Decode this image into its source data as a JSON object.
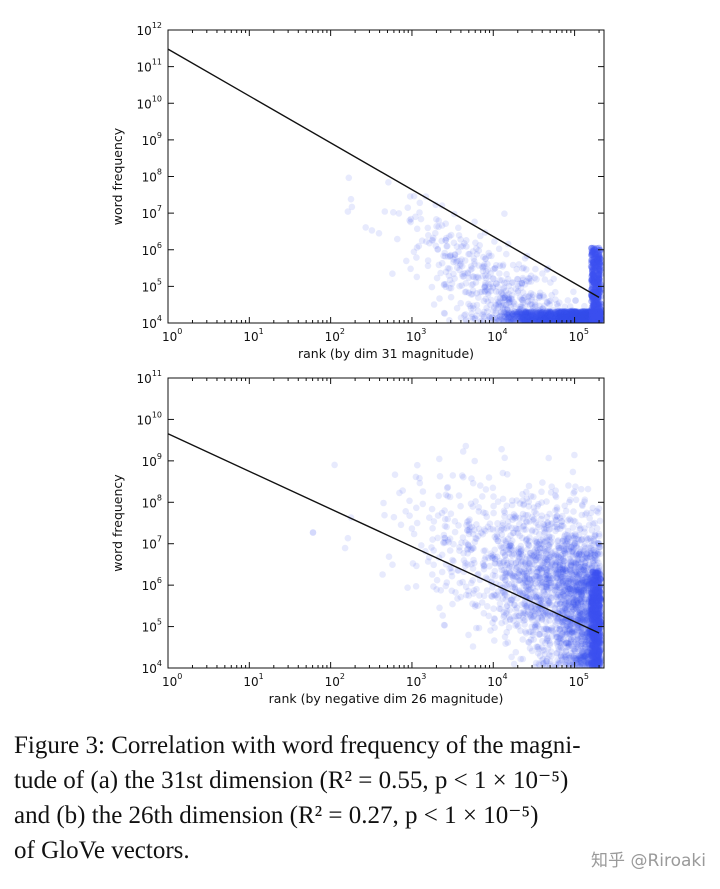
{
  "chart_data": [
    {
      "type": "scatter",
      "xlabel": "rank (by dim 31 magnitude)",
      "ylabel": "word frequency",
      "xscale": "log",
      "yscale": "log",
      "xlim": [
        1,
        230000
      ],
      "ylim": [
        10000,
        1000000000000
      ],
      "xticks": [
        {
          "base": "10",
          "exp": "0",
          "value": 1
        },
        {
          "base": "10",
          "exp": "1",
          "value": 10
        },
        {
          "base": "10",
          "exp": "2",
          "value": 100
        },
        {
          "base": "10",
          "exp": "3",
          "value": 1000
        },
        {
          "base": "10",
          "exp": "4",
          "value": 10000
        },
        {
          "base": "10",
          "exp": "5",
          "value": 100000
        }
      ],
      "yticks": [
        {
          "base": "10",
          "exp": "4",
          "value": 10000
        },
        {
          "base": "10",
          "exp": "5",
          "value": 100000
        },
        {
          "base": "10",
          "exp": "6",
          "value": 1000000
        },
        {
          "base": "10",
          "exp": "7",
          "value": 10000000
        },
        {
          "base": "10",
          "exp": "8",
          "value": 100000000
        },
        {
          "base": "10",
          "exp": "9",
          "value": 1000000000
        },
        {
          "base": "10",
          "exp": "10",
          "value": 10000000000
        },
        {
          "base": "10",
          "exp": "11",
          "value": 100000000000
        },
        {
          "base": "10",
          "exp": "12",
          "value": 1000000000000
        }
      ],
      "fit_line": {
        "x": [
          1,
          200000
        ],
        "y": [
          300000000000,
          50000
        ]
      },
      "point_color": "#3c50f0",
      "line_color": "#111111",
      "grid": false
    },
    {
      "type": "scatter",
      "xlabel": "rank (by negative dim 26 magnitude)",
      "ylabel": "word frequency",
      "xscale": "log",
      "yscale": "log",
      "xlim": [
        1,
        230000
      ],
      "ylim": [
        10000,
        100000000000
      ],
      "xticks": [
        {
          "base": "10",
          "exp": "0",
          "value": 1
        },
        {
          "base": "10",
          "exp": "1",
          "value": 10
        },
        {
          "base": "10",
          "exp": "2",
          "value": 100
        },
        {
          "base": "10",
          "exp": "3",
          "value": 1000
        },
        {
          "base": "10",
          "exp": "4",
          "value": 10000
        },
        {
          "base": "10",
          "exp": "5",
          "value": 100000
        }
      ],
      "yticks": [
        {
          "base": "10",
          "exp": "4",
          "value": 10000
        },
        {
          "base": "10",
          "exp": "5",
          "value": 100000
        },
        {
          "base": "10",
          "exp": "6",
          "value": 1000000
        },
        {
          "base": "10",
          "exp": "7",
          "value": 10000000
        },
        {
          "base": "10",
          "exp": "8",
          "value": 100000000
        },
        {
          "base": "10",
          "exp": "9",
          "value": 1000000000
        },
        {
          "base": "10",
          "exp": "10",
          "value": 10000000000
        },
        {
          "base": "10",
          "exp": "11",
          "value": 100000000000
        }
      ],
      "fit_line": {
        "x": [
          1,
          200000
        ],
        "y": [
          4500000000,
          70000
        ]
      },
      "point_color": "#3c50f0",
      "line_color": "#111111",
      "grid": false
    }
  ],
  "caption": {
    "lines": [
      "Figure 3: Correlation with word frequency of the magni-",
      "tude of (a) the 31st dimension (R² = 0.55, p < 1 × 10⁻⁵)",
      "and (b) the 26th dimension (R² = 0.27, p < 1 × 10⁻⁵)",
      "of GloVe vectors."
    ]
  },
  "watermark": "知乎 @Riroaki"
}
